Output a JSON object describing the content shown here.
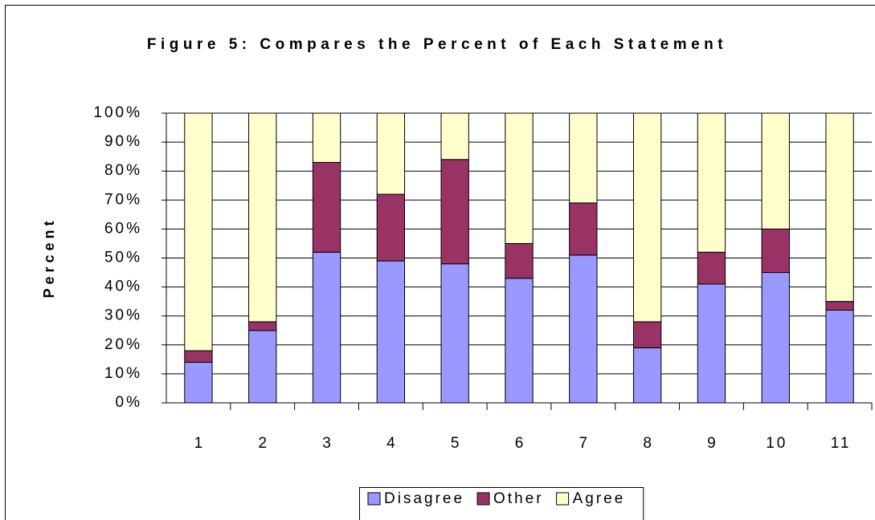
{
  "chart_data": {
    "type": "stacked_bar",
    "title": "Figure 5: Compares the Percent of Each Statement",
    "ylabel": "Percent",
    "categories": [
      "1",
      "2",
      "3",
      "4",
      "5",
      "6",
      "7",
      "8",
      "9",
      "10",
      "11"
    ],
    "series": [
      {
        "name": "Disagree",
        "color": "#9999ff",
        "values": [
          14,
          25,
          52,
          49,
          48,
          43,
          51,
          19,
          41,
          45,
          32
        ]
      },
      {
        "name": "Other",
        "color": "#993366",
        "values": [
          4,
          3,
          31,
          23,
          36,
          12,
          18,
          9,
          11,
          15,
          3
        ]
      },
      {
        "name": "Agree",
        "color": "#ffffcc",
        "values": [
          82,
          72,
          17,
          28,
          16,
          45,
          31,
          72,
          48,
          40,
          65
        ]
      }
    ],
    "ylim": [
      0,
      100
    ],
    "yticks": [
      {
        "value": 0,
        "label": "0%"
      },
      {
        "value": 10,
        "label": "10%"
      },
      {
        "value": 20,
        "label": "20%"
      },
      {
        "value": 30,
        "label": "30%"
      },
      {
        "value": 40,
        "label": "40%"
      },
      {
        "value": 50,
        "label": "50%"
      },
      {
        "value": 60,
        "label": "60%"
      },
      {
        "value": 70,
        "label": "70%"
      },
      {
        "value": 80,
        "label": "80%"
      },
      {
        "value": 90,
        "label": "90%"
      },
      {
        "value": 100,
        "label": "100%"
      }
    ],
    "grid": true,
    "legend": "bottom"
  }
}
